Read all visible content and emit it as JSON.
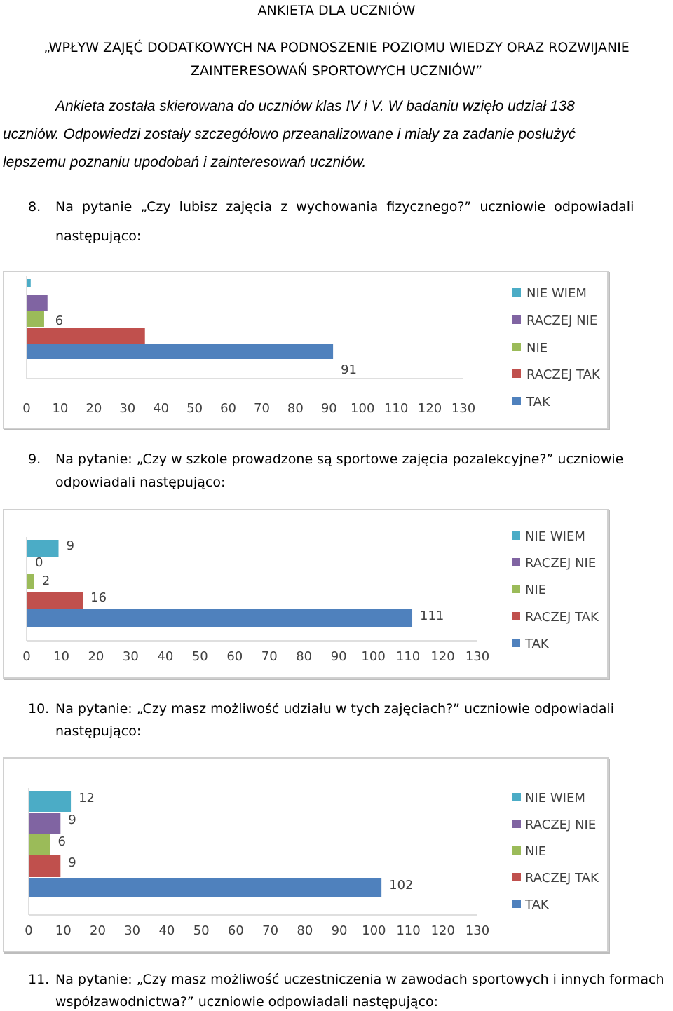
{
  "header": {
    "title": "ANKIETA DLA UCZNIÓW",
    "subtitle_line1": "„WPŁYW ZAJĘĆ DODATKOWYCH NA PODNOSZENIE POZIOMU WIEDZY ORAZ ROZWIJANIE",
    "subtitle_line2": "ZAINTERESOWAŃ SPORTOWYCH UCZNIÓW”"
  },
  "intro": {
    "line1": "Ankieta została skierowana do uczniów klas IV i V. W badaniu wzięło udział 138",
    "line2": "uczniów. Odpowiedzi zostały szczegółowo przeanalizowane i miały za zadanie posłużyć",
    "line3": "lepszemu poznaniu upodobań i zainteresowań uczniów."
  },
  "questions": [
    {
      "number": "8.",
      "line1": "Na pytanie „Czy lubisz zajęcia z wychowania fizycznego?” uczniowie odpowiadali",
      "line2": "następująco:"
    },
    {
      "number": "9.",
      "line1": "Na pytanie: „Czy w szkole prowadzone są sportowe zajęcia pozalekcyjne?” uczniowie",
      "line2": "odpowiadali następująco:"
    },
    {
      "number": "10.",
      "line1": "Na pytanie: „Czy masz możliwość udziału w tych zajęciach?” uczniowie odpowiadali",
      "line2": "następująco:"
    },
    {
      "number": "11.",
      "line1": "Na pytanie: „Czy masz możliwość uczestniczenia w zawodach sportowych i innych formach",
      "line2": "współzawodnictwa?” uczniowie odpowiadali następująco:"
    }
  ],
  "chart_data": [
    {
      "type": "bar",
      "orientation": "horizontal",
      "categories": [
        "NIE WIEM",
        "RACZEJ NIE",
        "NIE",
        "RACZEJ TAK",
        "TAK"
      ],
      "values": [
        1,
        6,
        5,
        35,
        91
      ],
      "xlim": [
        0,
        130
      ],
      "xticks": [
        "0",
        "10",
        "20",
        "30",
        "40",
        "50",
        "60",
        "70",
        "80",
        "90",
        "100",
        "110",
        "120",
        "130"
      ],
      "legend": "right",
      "colors": [
        "#4bacc6",
        "#8064a2",
        "#9bbb59",
        "#c0504d",
        "#4f81bd"
      ]
    },
    {
      "type": "bar",
      "orientation": "horizontal",
      "categories": [
        "NIE WIEM",
        "RACZEJ NIE",
        "NIE",
        "RACZEJ TAK",
        "TAK"
      ],
      "values": [
        9,
        0,
        2,
        16,
        111
      ],
      "xlim": [
        0,
        130
      ],
      "xticks": [
        "0",
        "10",
        "20",
        "30",
        "40",
        "50",
        "60",
        "70",
        "80",
        "90",
        "100",
        "110",
        "120",
        "130"
      ],
      "legend": "right",
      "colors": [
        "#4bacc6",
        "#8064a2",
        "#9bbb59",
        "#c0504d",
        "#4f81bd"
      ]
    },
    {
      "type": "bar",
      "orientation": "horizontal",
      "categories": [
        "NIE WIEM",
        "RACZEJ NIE",
        "NIE",
        "RACZEJ TAK",
        "TAK"
      ],
      "values": [
        12,
        9,
        6,
        9,
        102
      ],
      "xlim": [
        0,
        130
      ],
      "xticks": [
        "0",
        "10",
        "20",
        "30",
        "40",
        "50",
        "60",
        "70",
        "80",
        "90",
        "100",
        "110",
        "120",
        "130"
      ],
      "legend": "right",
      "colors": [
        "#4bacc6",
        "#8064a2",
        "#9bbb59",
        "#c0504d",
        "#4f81bd"
      ]
    }
  ]
}
